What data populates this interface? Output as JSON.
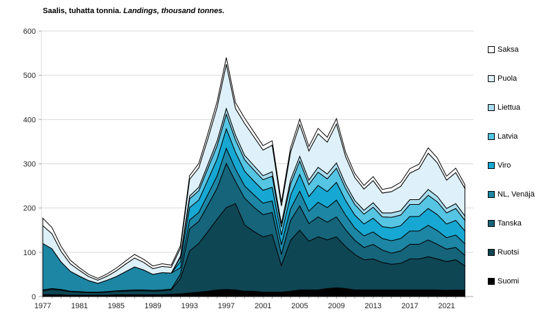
{
  "title": {
    "fi": "Saalis, tuhatta tonnia.",
    "en": "Landings, thousand tonnes."
  },
  "chart_data": {
    "type": "area",
    "stacked": true,
    "title": "Saalis, tuhatta tonnia. Landings, thousand tonnes.",
    "xlabel": "",
    "ylabel": "",
    "x_start": 1977,
    "x_end": 2023,
    "x_step": 1,
    "x_tick_labels": [
      1977,
      1981,
      1985,
      1989,
      1993,
      1997,
      2001,
      2005,
      2009,
      2013,
      2017,
      2021
    ],
    "y_ticks": [
      0,
      100,
      200,
      300,
      400,
      500,
      600
    ],
    "ylim": [
      0,
      600
    ],
    "grid": "horizontal",
    "legend_position": "right",
    "legend_order_top_to_bottom": [
      "Saksa",
      "Puola",
      "Liettua",
      "Latvia",
      "Viro",
      "NL, Venäjä",
      "Tanska",
      "Ruotsi",
      "Suomi"
    ],
    "series_note": "series listed bottom of stack first; values are thousand tonnes per year 1977-2023",
    "series": [
      {
        "name": "Suomi",
        "color": "#000000",
        "values": [
          4,
          4,
          4,
          3,
          3,
          3,
          3,
          3,
          4,
          4,
          4,
          4,
          4,
          4,
          5,
          6,
          8,
          10,
          12,
          15,
          16,
          15,
          12,
          12,
          10,
          10,
          10,
          12,
          15,
          15,
          15,
          18,
          20,
          18,
          15,
          15,
          15,
          15,
          15,
          15,
          15,
          15,
          15,
          15,
          14,
          15,
          14
        ]
      },
      {
        "name": "Ruotsi",
        "color": "#0e4654",
        "values": [
          9,
          12,
          10,
          8,
          7,
          6,
          6,
          7,
          8,
          8,
          9,
          9,
          8,
          9,
          10,
          35,
          95,
          110,
          135,
          160,
          185,
          195,
          150,
          135,
          125,
          130,
          60,
          115,
          135,
          110,
          120,
          110,
          115,
          95,
          80,
          68,
          70,
          62,
          58,
          60,
          70,
          70,
          75,
          70,
          65,
          68,
          55
        ]
      },
      {
        "name": "Tanska",
        "color": "#15647a",
        "values": [
          2,
          2,
          2,
          1,
          1,
          1,
          1,
          1,
          1,
          2,
          2,
          2,
          2,
          2,
          2,
          10,
          50,
          50,
          60,
          70,
          100,
          50,
          60,
          55,
          50,
          50,
          25,
          45,
          55,
          40,
          45,
          40,
          45,
          38,
          32,
          28,
          33,
          28,
          25,
          28,
          33,
          33,
          38,
          33,
          28,
          28,
          24
        ]
      },
      {
        "name": "NL, Venäjä",
        "color": "#1d86a4",
        "values": [
          105,
          90,
          62,
          45,
          35,
          26,
          20,
          26,
          32,
          42,
          52,
          45,
          36,
          39,
          36,
          14,
          20,
          20,
          24,
          28,
          34,
          28,
          28,
          28,
          26,
          26,
          22,
          26,
          33,
          28,
          33,
          33,
          38,
          33,
          28,
          26,
          28,
          26,
          28,
          28,
          30,
          30,
          33,
          31,
          26,
          28,
          26
        ]
      },
      {
        "name": "Viro",
        "color": "#16a8d2",
        "values": [
          0,
          0,
          0,
          0,
          0,
          0,
          0,
          0,
          0,
          0,
          0,
          0,
          0,
          0,
          0,
          14,
          28,
          28,
          33,
          38,
          44,
          38,
          33,
          31,
          29,
          31,
          22,
          31,
          38,
          33,
          38,
          36,
          40,
          33,
          29,
          27,
          31,
          27,
          29,
          29,
          33,
          33,
          38,
          36,
          31,
          33,
          29
        ]
      },
      {
        "name": "Latvia",
        "color": "#56c5e4",
        "values": [
          0,
          0,
          0,
          0,
          0,
          0,
          0,
          0,
          0,
          0,
          0,
          0,
          0,
          0,
          0,
          9,
          20,
          21,
          26,
          30,
          33,
          28,
          26,
          25,
          24,
          25,
          18,
          25,
          30,
          27,
          30,
          29,
          32,
          27,
          24,
          22,
          25,
          22,
          24,
          24,
          27,
          27,
          30,
          29,
          25,
          27,
          24
        ]
      },
      {
        "name": "Liettua",
        "color": "#a8ddef",
        "values": [
          0,
          0,
          0,
          0,
          0,
          0,
          0,
          0,
          0,
          0,
          0,
          0,
          0,
          0,
          0,
          3,
          6,
          8,
          9,
          11,
          13,
          11,
          10,
          10,
          9,
          10,
          8,
          10,
          11,
          10,
          11,
          11,
          12,
          10,
          9,
          9,
          10,
          9,
          10,
          10,
          11,
          11,
          13,
          12,
          10,
          11,
          10
        ]
      },
      {
        "name": "Puola",
        "color": "#def1fa",
        "values": [
          40,
          34,
          24,
          17,
          13,
          9,
          7,
          9,
          13,
          17,
          20,
          17,
          13,
          14,
          13,
          18,
          38,
          44,
          58,
          76,
          100,
          60,
          72,
          65,
          58,
          60,
          40,
          62,
          72,
          66,
          76,
          72,
          88,
          62,
          52,
          48,
          50,
          45,
          48,
          55,
          60,
          70,
          82,
          76,
          64,
          70,
          62
        ]
      },
      {
        "name": "Saksa",
        "color": "#ffffff",
        "values": [
          17,
          14,
          11,
          8,
          6,
          5,
          4,
          5,
          6,
          7,
          8,
          7,
          6,
          6,
          5,
          6,
          8,
          10,
          12,
          13,
          15,
          13,
          12,
          11,
          10,
          10,
          8,
          10,
          12,
          10,
          12,
          11,
          12,
          10,
          9,
          8,
          9,
          8,
          9,
          9,
          10,
          10,
          12,
          11,
          9,
          10,
          9
        ]
      }
    ],
    "colors": {
      "grid": "#d9d9d9",
      "axis": "#a6a6a6",
      "tick": "#a6a6a6",
      "label": "#262626",
      "outline": "#000000"
    }
  }
}
